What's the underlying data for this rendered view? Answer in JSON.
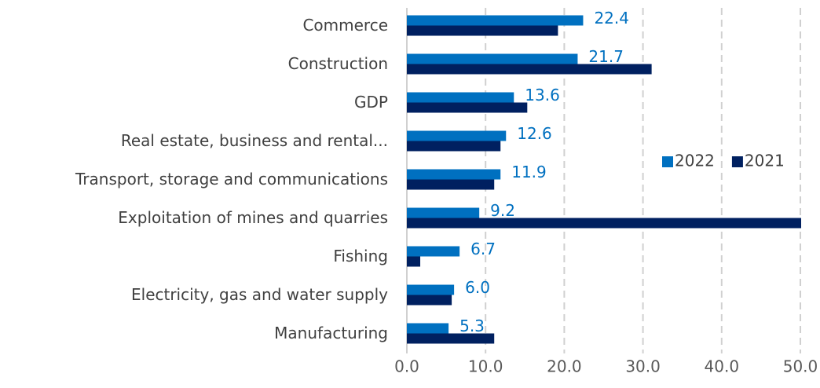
{
  "chart_data": {
    "type": "bar",
    "orientation": "horizontal",
    "categories": [
      "Commerce",
      "Construction",
      "GDP",
      "Real estate, business and rental...",
      "Transport, storage and communications",
      "Exploitation of mines and quarries",
      "Fishing",
      "Electricity, gas and water supply",
      "Manufacturing"
    ],
    "series": [
      {
        "name": "2022",
        "color": "#0070c0",
        "values": [
          22.4,
          21.7,
          13.6,
          12.6,
          11.9,
          9.2,
          6.7,
          6.0,
          5.3
        ],
        "value_labels": [
          "22.4",
          "21.7",
          "13.6",
          "12.6",
          "11.9",
          "9.2",
          "6.7",
          "6.0",
          "5.3"
        ]
      },
      {
        "name": "2021",
        "color": "#002060",
        "values": [
          19.2,
          31.1,
          15.3,
          11.9,
          11.1,
          50.1,
          1.7,
          5.7,
          11.1
        ]
      }
    ],
    "xlim": [
      0,
      50
    ],
    "xticks": [
      {
        "value": 0,
        "label": "0.0"
      },
      {
        "value": 10,
        "label": "10.0"
      },
      {
        "value": 20,
        "label": "20.0"
      },
      {
        "value": 30,
        "label": "30.0"
      },
      {
        "value": 40,
        "label": "40.0"
      },
      {
        "value": 50,
        "label": "50.0"
      }
    ],
    "grid": true,
    "legend": "right"
  }
}
